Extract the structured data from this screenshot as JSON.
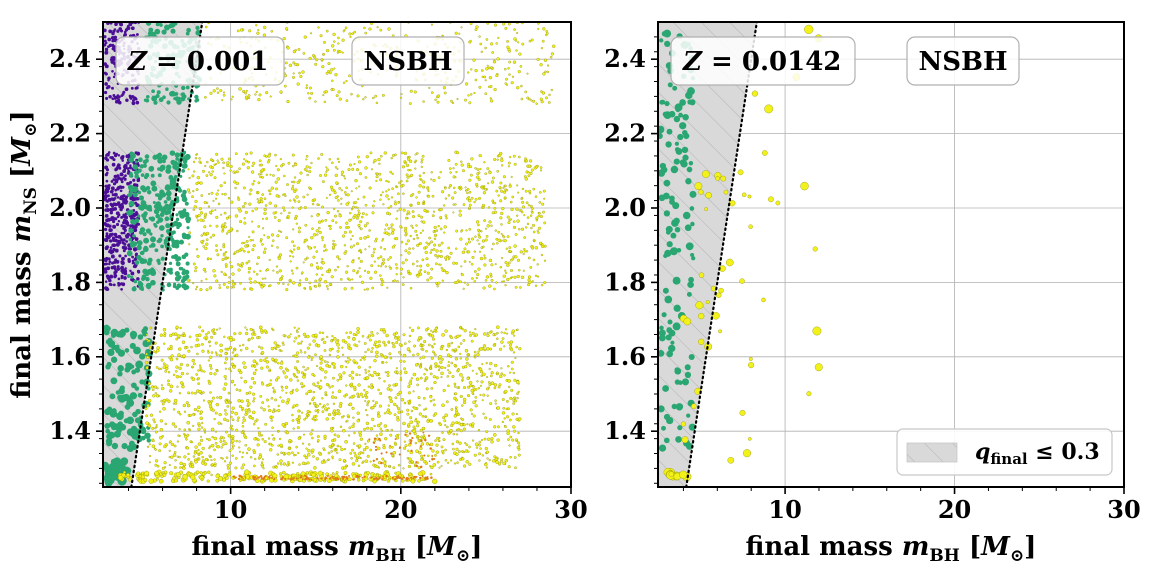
{
  "chart_data": [
    {
      "type": "scatter",
      "panel": "left",
      "xlabel": "final mass m_BH [M_⊙]",
      "ylabel": "final mass m_NS [M_⊙]",
      "xlim": [
        2.5,
        30
      ],
      "ylim": [
        1.25,
        2.5
      ],
      "x_ticks": [
        10,
        20,
        30
      ],
      "x_tick_labels": [
        "10",
        "20",
        "30"
      ],
      "y_ticks": [
        1.4,
        1.6,
        1.8,
        2.0,
        2.2,
        2.4
      ],
      "y_tick_labels": [
        "1.4",
        "1.6",
        "1.8",
        "2.0",
        "2.2",
        "2.4"
      ],
      "grid": true,
      "annotations": [
        "Z = 0.001",
        "NSBH"
      ],
      "shaded_region": {
        "label": "q_final ≤ 0.3",
        "boundary": "m_NS = 0.3 · m_BH"
      },
      "series": [
        {
          "color": "#4b0f96",
          "regions": [
            {
              "x": [
                2.6,
                4.6
              ],
              "y": [
                1.78,
                2.15
              ],
              "n": 420,
              "size": [
                1.2,
                2.0
              ]
            },
            {
              "x": [
                2.6,
                4.6
              ],
              "y": [
                2.28,
                2.5
              ],
              "n": 180,
              "size": [
                1.2,
                2.0
              ]
            }
          ]
        },
        {
          "color": "#2aa672",
          "regions": [
            {
              "x": [
                4.0,
                7.5
              ],
              "y": [
                1.78,
                2.15
              ],
              "n": 300,
              "size": [
                1.5,
                3.0
              ]
            },
            {
              "x": [
                5.0,
                8.2
              ],
              "y": [
                2.28,
                2.5
              ],
              "n": 140,
              "size": [
                1.5,
                3.0
              ]
            },
            {
              "x": [
                2.7,
                5.2
              ],
              "y": [
                1.35,
                1.68
              ],
              "n": 120,
              "size": [
                2.0,
                4.0
              ]
            },
            {
              "x": [
                2.6,
                4.0
              ],
              "y": [
                1.26,
                1.32
              ],
              "n": 40,
              "size": [
                2.5,
                5.0
              ]
            }
          ]
        },
        {
          "color": "#f2f21a",
          "regions": [
            {
              "x": [
                7.5,
                28.5
              ],
              "y": [
                1.78,
                2.15
              ],
              "n": 1300,
              "size": [
                0.8,
                1.5
              ]
            },
            {
              "x": [
                5.0,
                27.0
              ],
              "y": [
                1.3,
                1.68
              ],
              "n": 1800,
              "size": [
                0.8,
                1.6
              ]
            },
            {
              "x": [
                8.5,
                29.0
              ],
              "y": [
                2.28,
                2.5
              ],
              "n": 450,
              "size": [
                0.8,
                1.5
              ]
            },
            {
              "x": [
                3.5,
                22.0
              ],
              "y": [
                1.265,
                1.29
              ],
              "n": 250,
              "size": [
                1.0,
                2.5
              ]
            }
          ]
        },
        {
          "color": "#e07a18",
          "regions": [
            {
              "x": [
                10.0,
                22.0
              ],
              "y": [
                1.27,
                1.28
              ],
              "n": 120,
              "size": [
                0.8,
                1.3
              ]
            },
            {
              "x": [
                18.0,
                22.0
              ],
              "y": [
                1.3,
                1.4
              ],
              "n": 40,
              "size": [
                0.8,
                1.3
              ]
            }
          ]
        }
      ]
    },
    {
      "type": "scatter",
      "panel": "right",
      "xlabel": "final mass m_BH [M_⊙]",
      "ylabel": "",
      "xlim": [
        2.5,
        30
      ],
      "ylim": [
        1.25,
        2.5
      ],
      "x_ticks": [
        10,
        20,
        30
      ],
      "x_tick_labels": [
        "10",
        "20",
        "30"
      ],
      "y_ticks": [
        1.4,
        1.6,
        1.8,
        2.0,
        2.2,
        2.4
      ],
      "y_tick_labels": [
        "1.4",
        "1.6",
        "1.8",
        "2.0",
        "2.2",
        "2.4"
      ],
      "grid": true,
      "annotations": [
        "Z = 0.0142",
        "NSBH"
      ],
      "shaded_region": {
        "label": "q_final ≤ 0.3",
        "boundary": "m_NS = 0.3 · m_BH"
      },
      "legend": {
        "position": "bottom-right",
        "entries": [
          "q_final ≤ 0.3"
        ]
      },
      "series": [
        {
          "color": "#2aa672",
          "regions": [
            {
              "x": [
                2.6,
                4.6
              ],
              "y": [
                1.35,
                2.5
              ],
              "n": 130,
              "size": [
                2.0,
                4.0
              ]
            }
          ]
        },
        {
          "color": "#f2f21a",
          "regions": [
            {
              "x": [
                4.0,
                8.0
              ],
              "y": [
                1.3,
                2.1
              ],
              "n": 40,
              "size": [
                1.5,
                4.0
              ]
            },
            {
              "x": [
                8.0,
                12.0
              ],
              "y": [
                1.5,
                2.5
              ],
              "n": 14,
              "size": [
                2.0,
                4.5
              ]
            },
            {
              "x": [
                2.8,
                4.2
              ],
              "y": [
                1.27,
                1.29
              ],
              "n": 12,
              "size": [
                2.5,
                4.5
              ]
            }
          ]
        }
      ]
    }
  ]
}
